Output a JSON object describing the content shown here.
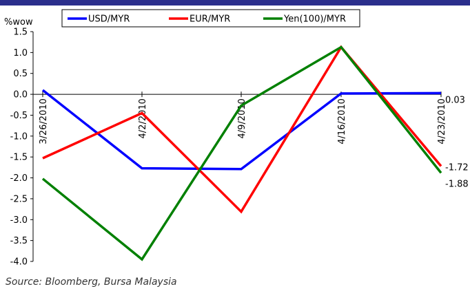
{
  "source": "Source: Bloomberg, Bursa Malaysia",
  "chart_data": {
    "type": "line",
    "ylabel": "%wow",
    "ylim": [
      -4.0,
      1.5
    ],
    "ytick_step": 0.5,
    "yticks": [
      "1.5",
      "1.0",
      "0.5",
      "0.0",
      "-0.5",
      "-1.0",
      "-1.5",
      "-2.0",
      "-2.5",
      "-3.0",
      "-3.5",
      "-4.0"
    ],
    "categories": [
      "3/26/2010",
      "4/2/2010",
      "4/9/2010",
      "4/16/2010",
      "4/23/2010"
    ],
    "grid": false,
    "legend_position": "top",
    "series": [
      {
        "name": "USD/MYR",
        "color": "#0000ff",
        "values": [
          0.1,
          -1.77,
          -1.79,
          0.02,
          0.03
        ]
      },
      {
        "name": "EUR/MYR",
        "color": "#ff0000",
        "values": [
          -1.53,
          -0.45,
          -2.81,
          1.13,
          -1.72
        ]
      },
      {
        "name": "Yen(100)/MYR",
        "color": "#008000",
        "values": [
          -2.02,
          -3.95,
          -0.27,
          1.13,
          -1.88
        ]
      }
    ],
    "end_labels": [
      "0.03",
      "-1.72",
      "-1.88"
    ]
  }
}
